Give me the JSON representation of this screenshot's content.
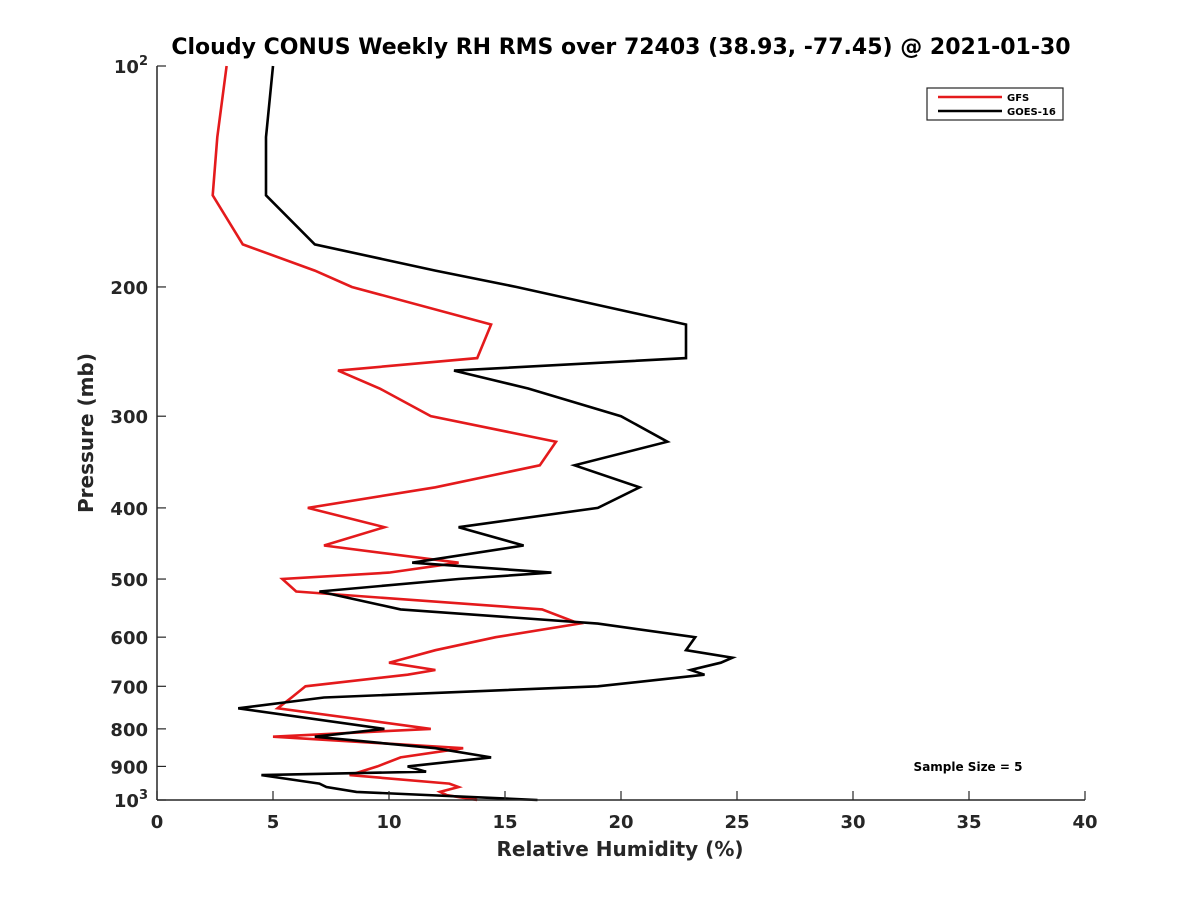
{
  "chart_data": {
    "type": "line",
    "title": "Cloudy CONUS Weekly RH RMS over 72403 (38.93, -77.45) @ 2021-01-30",
    "xlabel": "Relative Humidity (%)",
    "ylabel": "Pressure (mb)",
    "xlim": [
      0,
      40
    ],
    "ylim": [
      1000,
      100
    ],
    "yscale": "log",
    "y_reversed": true,
    "x_ticks": [
      "0",
      "5",
      "10",
      "15",
      "20",
      "25",
      "30",
      "35",
      "40"
    ],
    "y_ticks": [
      {
        "value": 100,
        "label": "10",
        "sup": "2"
      },
      {
        "value": 200,
        "label": "200",
        "sup": ""
      },
      {
        "value": 300,
        "label": "300",
        "sup": ""
      },
      {
        "value": 400,
        "label": "400",
        "sup": ""
      },
      {
        "value": 500,
        "label": "500",
        "sup": ""
      },
      {
        "value": 600,
        "label": "600",
        "sup": ""
      },
      {
        "value": 700,
        "label": "700",
        "sup": ""
      },
      {
        "value": 800,
        "label": "800",
        "sup": ""
      },
      {
        "value": 900,
        "label": "900",
        "sup": ""
      },
      {
        "value": 1000,
        "label": "10",
        "sup": "3"
      }
    ],
    "grid": false,
    "legend_position": "top-right",
    "annotation": "Sample Size = 5",
    "series": [
      {
        "name": "GFS",
        "color": "#e41a1c",
        "points": [
          [
            3.0,
            100
          ],
          [
            2.6,
            125
          ],
          [
            2.4,
            150
          ],
          [
            3.7,
            175
          ],
          [
            6.8,
            190
          ],
          [
            8.4,
            200
          ],
          [
            14.4,
            225
          ],
          [
            13.8,
            250
          ],
          [
            7.8,
            260
          ],
          [
            9.6,
            275
          ],
          [
            11.8,
            300
          ],
          [
            17.2,
            325
          ],
          [
            16.5,
            350
          ],
          [
            12.0,
            375
          ],
          [
            6.5,
            400
          ],
          [
            9.8,
            425
          ],
          [
            7.2,
            450
          ],
          [
            13.0,
            475
          ],
          [
            10.0,
            490
          ],
          [
            5.4,
            500
          ],
          [
            6.0,
            520
          ],
          [
            16.6,
            550
          ],
          [
            18.2,
            575
          ],
          [
            14.6,
            600
          ],
          [
            12.0,
            625
          ],
          [
            10.8,
            640
          ],
          [
            10.0,
            650
          ],
          [
            12.0,
            665
          ],
          [
            10.8,
            675
          ],
          [
            6.4,
            700
          ],
          [
            5.8,
            725
          ],
          [
            5.2,
            750
          ],
          [
            11.8,
            800
          ],
          [
            5.0,
            820
          ],
          [
            13.2,
            850
          ],
          [
            10.5,
            875
          ],
          [
            9.5,
            900
          ],
          [
            8.3,
            925
          ],
          [
            12.6,
            950
          ],
          [
            13.0,
            960
          ],
          [
            12.2,
            975
          ],
          [
            12.5,
            985
          ],
          [
            13.8,
            1000
          ]
        ]
      },
      {
        "name": "GOES-16",
        "color": "#000000",
        "points": [
          [
            5.0,
            100
          ],
          [
            4.7,
            125
          ],
          [
            4.7,
            150
          ],
          [
            6.8,
            175
          ],
          [
            12.0,
            190
          ],
          [
            15.5,
            200
          ],
          [
            22.8,
            225
          ],
          [
            22.8,
            250
          ],
          [
            12.8,
            260
          ],
          [
            16.0,
            275
          ],
          [
            20.0,
            300
          ],
          [
            22.0,
            325
          ],
          [
            18.0,
            350
          ],
          [
            20.8,
            375
          ],
          [
            19.0,
            400
          ],
          [
            13.0,
            425
          ],
          [
            15.8,
            450
          ],
          [
            11.0,
            475
          ],
          [
            17.0,
            490
          ],
          [
            13.0,
            500
          ],
          [
            7.0,
            520
          ],
          [
            10.5,
            550
          ],
          [
            19.0,
            575
          ],
          [
            23.2,
            600
          ],
          [
            22.8,
            625
          ],
          [
            24.8,
            640
          ],
          [
            24.3,
            650
          ],
          [
            23.0,
            665
          ],
          [
            23.6,
            675
          ],
          [
            19.0,
            700
          ],
          [
            7.2,
            725
          ],
          [
            3.5,
            750
          ],
          [
            9.8,
            800
          ],
          [
            6.8,
            820
          ],
          [
            12.0,
            850
          ],
          [
            14.4,
            875
          ],
          [
            10.8,
            900
          ],
          [
            11.6,
            915
          ],
          [
            4.5,
            925
          ],
          [
            7.0,
            950
          ],
          [
            7.3,
            960
          ],
          [
            8.6,
            975
          ],
          [
            16.4,
            1000
          ]
        ]
      }
    ]
  }
}
